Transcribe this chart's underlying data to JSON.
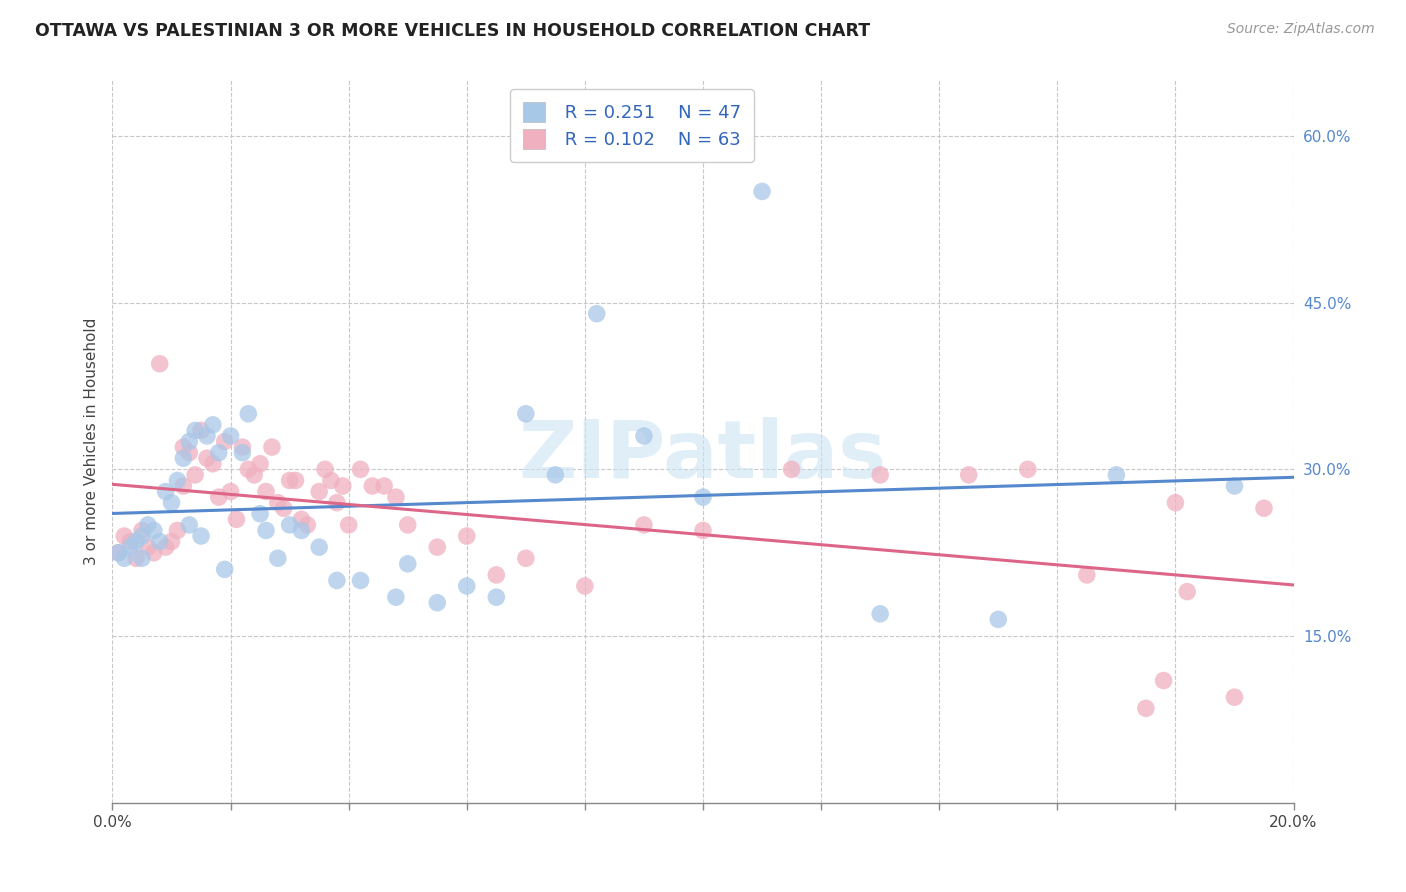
{
  "title": "OTTAWA VS PALESTINIAN 3 OR MORE VEHICLES IN HOUSEHOLD CORRELATION CHART",
  "source": "Source: ZipAtlas.com",
  "ylabel": "3 or more Vehicles in Household",
  "xlim": [
    0.0,
    0.2
  ],
  "ylim": [
    0.0,
    0.65
  ],
  "xticks": [
    0.0,
    0.02,
    0.04,
    0.06,
    0.08,
    0.1,
    0.12,
    0.14,
    0.16,
    0.18,
    0.2
  ],
  "xticklabels": [
    "0.0%",
    "",
    "",
    "",
    "",
    "",
    "",
    "",
    "",
    "",
    "20.0%"
  ],
  "yticks_right": [
    0.15,
    0.3,
    0.45,
    0.6
  ],
  "ytick_labels_right": [
    "15.0%",
    "30.0%",
    "45.0%",
    "60.0%"
  ],
  "background_color": "#ffffff",
  "grid_color": "#c8c8c8",
  "watermark": "ZIPatlas",
  "legend_r1": "R = 0.251",
  "legend_n1": "N = 47",
  "legend_r2": "R = 0.102",
  "legend_n2": "N = 63",
  "ottawa_color": "#a8c8e8",
  "palestinian_color": "#f0b0c0",
  "trendline_ottawa_color": "#5588cc",
  "trendline_palestinian_color": "#dd6688",
  "ottawa_x": [
    0.001,
    0.002,
    0.003,
    0.004,
    0.005,
    0.005,
    0.006,
    0.007,
    0.008,
    0.009,
    0.01,
    0.011,
    0.012,
    0.013,
    0.013,
    0.014,
    0.015,
    0.016,
    0.017,
    0.018,
    0.019,
    0.02,
    0.022,
    0.023,
    0.025,
    0.026,
    0.028,
    0.03,
    0.032,
    0.035,
    0.038,
    0.042,
    0.048,
    0.05,
    0.055,
    0.06,
    0.065,
    0.07,
    0.075,
    0.082,
    0.09,
    0.1,
    0.11,
    0.13,
    0.15,
    0.17,
    0.19
  ],
  "ottawa_y": [
    0.225,
    0.22,
    0.23,
    0.235,
    0.24,
    0.22,
    0.25,
    0.245,
    0.235,
    0.28,
    0.27,
    0.29,
    0.31,
    0.325,
    0.25,
    0.335,
    0.24,
    0.33,
    0.34,
    0.315,
    0.21,
    0.33,
    0.315,
    0.35,
    0.26,
    0.245,
    0.22,
    0.25,
    0.245,
    0.23,
    0.2,
    0.2,
    0.185,
    0.215,
    0.18,
    0.195,
    0.185,
    0.35,
    0.295,
    0.44,
    0.33,
    0.275,
    0.55,
    0.17,
    0.165,
    0.295,
    0.285
  ],
  "palestinian_x": [
    0.001,
    0.002,
    0.003,
    0.004,
    0.005,
    0.006,
    0.007,
    0.008,
    0.009,
    0.01,
    0.011,
    0.012,
    0.012,
    0.013,
    0.014,
    0.015,
    0.016,
    0.017,
    0.018,
    0.019,
    0.02,
    0.021,
    0.022,
    0.023,
    0.024,
    0.025,
    0.026,
    0.027,
    0.028,
    0.029,
    0.03,
    0.031,
    0.032,
    0.033,
    0.035,
    0.036,
    0.037,
    0.038,
    0.039,
    0.04,
    0.042,
    0.044,
    0.046,
    0.048,
    0.05,
    0.055,
    0.06,
    0.065,
    0.07,
    0.08,
    0.09,
    0.1,
    0.115,
    0.13,
    0.145,
    0.155,
    0.165,
    0.18,
    0.19,
    0.195,
    0.175,
    0.178,
    0.182
  ],
  "palestinian_y": [
    0.225,
    0.24,
    0.235,
    0.22,
    0.245,
    0.23,
    0.225,
    0.395,
    0.23,
    0.235,
    0.245,
    0.285,
    0.32,
    0.315,
    0.295,
    0.335,
    0.31,
    0.305,
    0.275,
    0.325,
    0.28,
    0.255,
    0.32,
    0.3,
    0.295,
    0.305,
    0.28,
    0.32,
    0.27,
    0.265,
    0.29,
    0.29,
    0.255,
    0.25,
    0.28,
    0.3,
    0.29,
    0.27,
    0.285,
    0.25,
    0.3,
    0.285,
    0.285,
    0.275,
    0.25,
    0.23,
    0.24,
    0.205,
    0.22,
    0.195,
    0.25,
    0.245,
    0.3,
    0.295,
    0.295,
    0.3,
    0.205,
    0.27,
    0.095,
    0.265,
    0.085,
    0.11,
    0.19
  ]
}
